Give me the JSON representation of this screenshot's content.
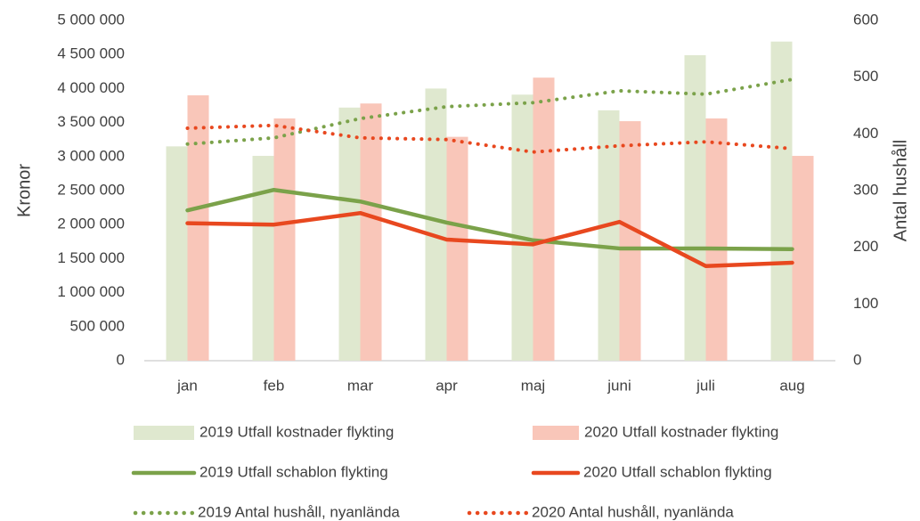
{
  "chart_data": {
    "type": "combo",
    "categories": [
      "jan",
      "feb",
      "mar",
      "apr",
      "maj",
      "juni",
      "juli",
      "aug"
    ],
    "y_label": "Kronor",
    "y2_label": "Antal hushåll",
    "ylim": [
      0,
      5000000
    ],
    "yticks": [
      {
        "value": 0,
        "label": "0"
      },
      {
        "value": 500000,
        "label": "500 000"
      },
      {
        "value": 1000000,
        "label": "1 000 000"
      },
      {
        "value": 1500000,
        "label": "1 500 000"
      },
      {
        "value": 2000000,
        "label": "2 000 000"
      },
      {
        "value": 2500000,
        "label": "2 500 000"
      },
      {
        "value": 3000000,
        "label": "3 000 000"
      },
      {
        "value": 3500000,
        "label": "3 500 000"
      },
      {
        "value": 4000000,
        "label": "4 000 000"
      },
      {
        "value": 4500000,
        "label": "4 500 000"
      },
      {
        "value": 5000000,
        "label": "5 000 000"
      }
    ],
    "y2lim": [
      0,
      600
    ],
    "y2ticks": [
      0,
      100,
      200,
      300,
      400,
      500,
      600
    ],
    "grid": false,
    "series": [
      {
        "name": "2019 Utfall kostnader flykting",
        "type": "bar",
        "color": "#dfe8cf",
        "values": [
          3150000,
          3010000,
          3720000,
          4000000,
          3910000,
          3680000,
          4490000,
          4690000
        ]
      },
      {
        "name": "2020 Utfall kostnader flykting",
        "type": "bar",
        "color": "#f9c6b9",
        "values": [
          3900000,
          3560000,
          3780000,
          3290000,
          4160000,
          3520000,
          3560000,
          3010000
        ]
      },
      {
        "name": "2019 Utfall schablon flykting",
        "type": "line",
        "color": "#7ba24a",
        "values": [
          2210000,
          2510000,
          2340000,
          2030000,
          1770000,
          1650000,
          1650000,
          1640000
        ]
      },
      {
        "name": "2020 Utfall schablon flykting",
        "type": "line",
        "color": "#e8481f",
        "values": [
          2020000,
          2000000,
          2170000,
          1780000,
          1710000,
          2040000,
          1390000,
          1440000
        ]
      },
      {
        "name": "2019 Antal hushåll, nyanlända",
        "type": "dotted",
        "axis": "y2",
        "color": "#7ba24a",
        "values": [
          382,
          393,
          427,
          448,
          455,
          476,
          470,
          496
        ]
      },
      {
        "name": "2020 Antal hushåll, nyanlända",
        "type": "dotted",
        "axis": "y2",
        "color": "#e8481f",
        "values": [
          410,
          415,
          393,
          390,
          368,
          379,
          386,
          374
        ]
      }
    ]
  }
}
